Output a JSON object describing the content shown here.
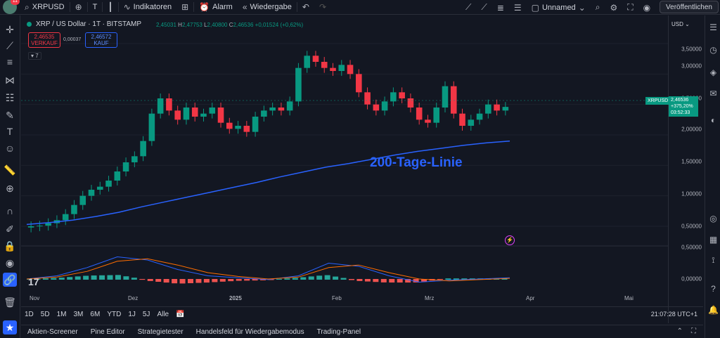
{
  "topbar": {
    "notification_count": "11",
    "symbol": "XRPUSD",
    "interval": "T",
    "indicators_label": "Indikatoren",
    "alarm_label": "Alarm",
    "replay_label": "Wiedergabe",
    "layout_name": "Unnamed",
    "publish_label": "Veröffentlichen"
  },
  "legend": {
    "title": "XRP / US Dollar · 1T · BITSTAMP",
    "open_label": "",
    "open": "2,45031",
    "high_label": "H",
    "high": "2,47753",
    "low_label": "L",
    "low": "2,40800",
    "close_label": "C",
    "close": "2,46536",
    "change": "+0,01524 (+0,62%)",
    "sell_price": "2,46535",
    "sell_label": "VERKAUF",
    "spread": "0,00037",
    "buy_price": "2,46572",
    "buy_label": "KAUF",
    "indicator_count": "7"
  },
  "price_scale": {
    "currency": "USD",
    "ticks": [
      "3,50000",
      "3,00000",
      "2,50000",
      "2,00000",
      "1,50000",
      "1,00000",
      "0,50000",
      "0,50000",
      "0,00000"
    ],
    "last_price": "2,46536",
    "change_pct": "+375,20%",
    "countdown": "03:52:33",
    "symbol_tag": "XRPUSD"
  },
  "time_axis": {
    "ticks": [
      "Nov",
      "Dez",
      "2025",
      "Feb",
      "Mrz",
      "Apr",
      "Mai"
    ]
  },
  "annotation": "200-Tage-Linie",
  "ranges": [
    "1D",
    "5D",
    "1M",
    "3M",
    "6M",
    "YTD",
    "1J",
    "5J",
    "Alle"
  ],
  "clock": "21:07:28 UTC+1",
  "bottom_panel": [
    "Aktien-Screener",
    "Pine Editor",
    "Strategietester",
    "Handelsfeld für Wiedergabemodus",
    "Trading-Panel"
  ],
  "colors": {
    "up": "#089981",
    "down": "#f23645",
    "ma200": "#2962ff",
    "macd": "#2962ff",
    "signal": "#ff6d00",
    "background": "#131722"
  },
  "chart_data": {
    "type": "candlestick",
    "symbol": "XRPUSD",
    "ylim": [
      0,
      3.5
    ],
    "price_series": [
      0.5,
      0.51,
      0.55,
      0.6,
      0.7,
      0.85,
      1.0,
      1.1,
      1.15,
      1.25,
      1.4,
      1.55,
      1.65,
      1.9,
      2.35,
      2.6,
      2.4,
      2.25,
      2.45,
      2.3,
      2.35,
      2.45,
      2.2,
      2.1,
      2.15,
      2.05,
      2.3,
      2.4,
      2.45,
      2.4,
      2.55,
      3.1,
      3.3,
      3.2,
      3.1,
      3.05,
      3.15,
      3.0,
      2.7,
      2.5,
      2.4,
      2.55,
      2.7,
      2.6,
      2.45,
      2.25,
      2.2,
      2.45,
      2.8,
      2.35,
      2.15,
      2.25,
      2.35,
      2.5,
      2.4,
      2.46
    ],
    "ma200_series": [
      0.53,
      0.56,
      0.6,
      0.66,
      0.73,
      0.82,
      0.9,
      0.98,
      1.06,
      1.14,
      1.22,
      1.31,
      1.39,
      1.47,
      1.53,
      1.6,
      1.67,
      1.73,
      1.78,
      1.83,
      1.87,
      1.9
    ],
    "macd_series": [
      0.0,
      0.05,
      0.18,
      0.35,
      0.3,
      0.15,
      0.05,
      0.02,
      -0.01,
      0.05,
      0.25,
      0.2,
      0.05,
      -0.05,
      -0.02,
      0.0,
      0.02
    ],
    "signal_series": [
      0.0,
      0.03,
      0.12,
      0.28,
      0.32,
      0.22,
      0.1,
      0.04,
      0.0,
      0.03,
      0.18,
      0.22,
      0.1,
      0.0,
      -0.03,
      -0.01,
      0.01
    ]
  }
}
